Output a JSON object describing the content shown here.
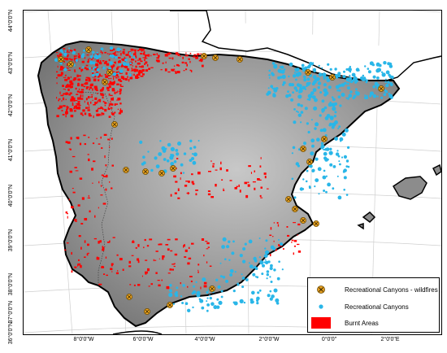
{
  "latitude_labels": [
    "44°0'0\"N",
    "43°0'0\"N",
    "42°0'0\"N",
    "41°0'0\"N",
    "40°0'0\"N",
    "39°0'0\"N",
    "38°0'0\"N",
    "37°0'0\"N",
    "36°0'0\"N"
  ],
  "longitude_labels": [
    "8°0'0\"W",
    "6°0'0\"W",
    "4°0'0\"W",
    "2°0'0\"W",
    "0°0'0\"",
    "2°0'0\"E"
  ],
  "legend": {
    "items": [
      {
        "label": "Recreational Canyons - wildfires",
        "symbol": "orange-x-circle",
        "color": "#e8a020"
      },
      {
        "label": "Recreational Canyons",
        "symbol": "cyan-dot",
        "color": "#29b6e8"
      },
      {
        "label": "Burnt Areas",
        "symbol": "red-rectangle",
        "color": "#ff0000"
      }
    ]
  },
  "colors": {
    "land_elevation": "#8c8c8c",
    "burnt_areas": "#ff0000",
    "canyons": "#29b6e8",
    "canyons_wildfires": "#e8a020"
  }
}
